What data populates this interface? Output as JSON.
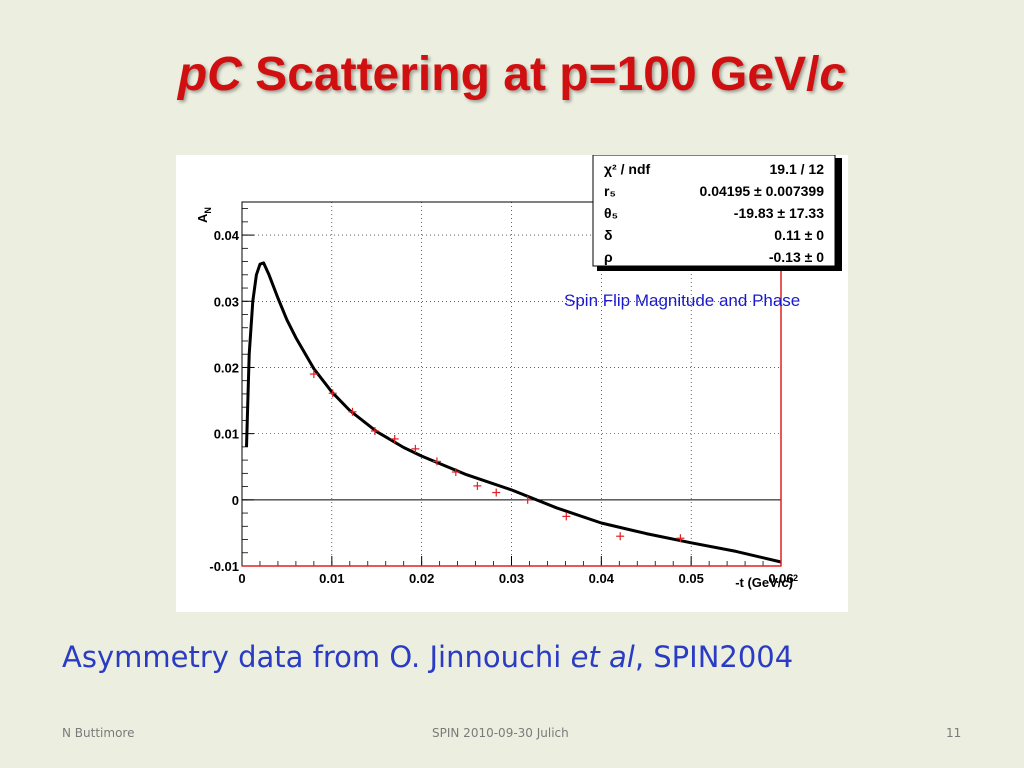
{
  "slide": {
    "title_part1": "pC",
    "title_part2": " Scattering at  p=100 GeV/",
    "title_part3": "c",
    "caption_part1": "Asymmetry data from O. Jinnouchi ",
    "caption_part2": "et al",
    "caption_part3": ", SPIN2004",
    "footer_left": "N Buttimore",
    "footer_center": "SPIN 2010-09-30 Julich",
    "footer_right": "11"
  },
  "colors": {
    "background": "#ecefe0",
    "title": "#d01010",
    "caption": "#2a3bc4",
    "annotation": "#1a1acc",
    "data_points": "#e02020",
    "fit_curve": "#000000"
  },
  "chart_data": {
    "type": "scatter",
    "title": "",
    "annotation": "Spin Flip Magnitude and Phase",
    "xlabel": "-t (GeV/c)",
    "xlabel_superscript": "2",
    "ylabel": "A",
    "ylabel_subscript": "N",
    "xlim": [
      0,
      0.06
    ],
    "ylim": [
      -0.01,
      0.045
    ],
    "x_ticks": [
      "0",
      "0.01",
      "0.02",
      "0.03",
      "0.04",
      "0.05",
      "0.06"
    ],
    "y_ticks": [
      "-0.01",
      "0",
      "0.01",
      "0.02",
      "0.03",
      "0.04"
    ],
    "grid": true,
    "series": [
      {
        "kind": "points",
        "x": [
          0.008,
          0.0101,
          0.0123,
          0.0148,
          0.017,
          0.0193,
          0.0217,
          0.0238,
          0.0262,
          0.0283,
          0.0318,
          0.0361,
          0.0421,
          0.0488
        ],
        "y": [
          0.019,
          0.0161,
          0.0133,
          0.0104,
          0.0092,
          0.0077,
          0.0058,
          0.0042,
          0.0021,
          0.0011,
          0.0,
          -0.0025,
          -0.0055,
          -0.0058
        ]
      },
      {
        "kind": "fit",
        "x": [
          0.0005,
          0.0008,
          0.0012,
          0.0016,
          0.002,
          0.0024,
          0.003,
          0.004,
          0.005,
          0.006,
          0.008,
          0.01,
          0.012,
          0.015,
          0.018,
          0.02,
          0.025,
          0.03,
          0.035,
          0.04,
          0.045,
          0.05,
          0.055,
          0.06
        ],
        "y": [
          0.008,
          0.022,
          0.03,
          0.034,
          0.0356,
          0.0358,
          0.034,
          0.0305,
          0.0272,
          0.0245,
          0.0198,
          0.0163,
          0.0135,
          0.0103,
          0.0079,
          0.0066,
          0.0038,
          0.0015,
          -0.0012,
          -0.0035,
          -0.0051,
          -0.0065,
          -0.0078,
          -0.0094
        ]
      }
    ],
    "stats_box": [
      {
        "name": "χ² / ndf",
        "value": "19.1 / 12"
      },
      {
        "name": "r₅",
        "value": "0.04195 ± 0.007399"
      },
      {
        "name": "θ₅",
        "value": "-19.83 ± 17.33"
      },
      {
        "name": "δ",
        "value": "0.11 ±      0"
      },
      {
        "name": "ρ",
        "value": "-0.13 ±      0"
      }
    ]
  }
}
